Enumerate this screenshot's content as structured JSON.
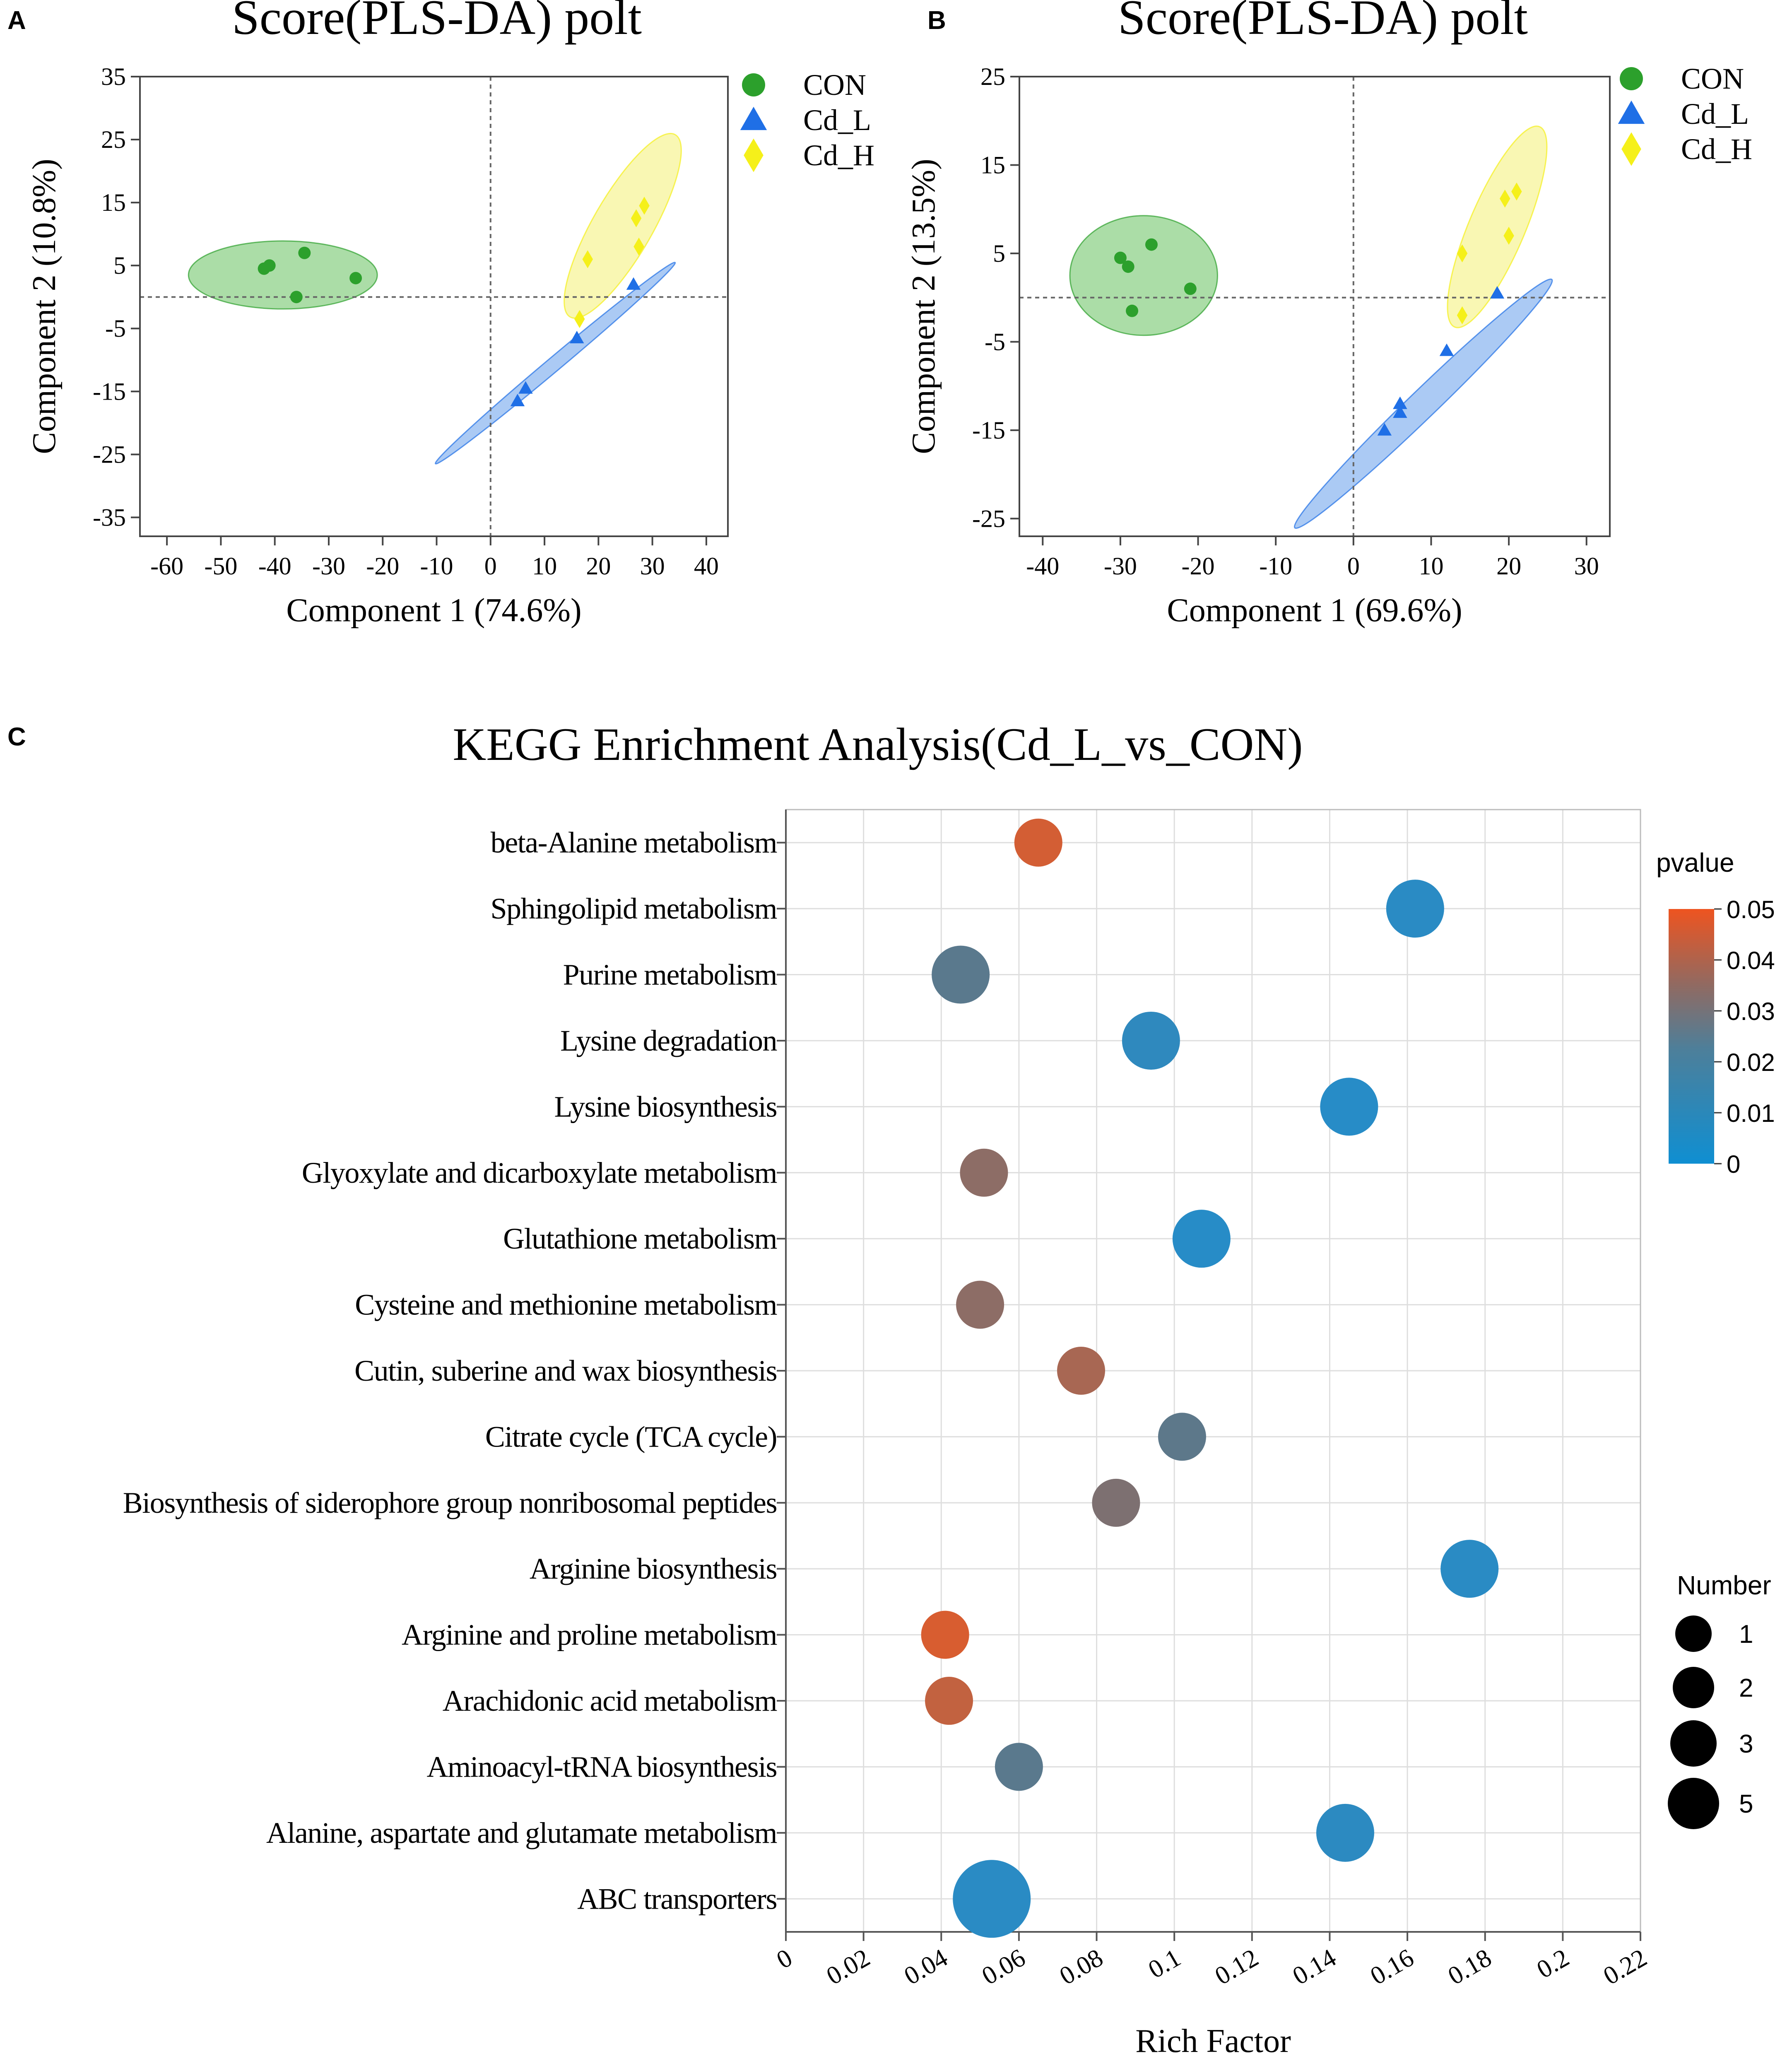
{
  "panels": {
    "a": {
      "letter": "A"
    },
    "b": {
      "letter": "B"
    },
    "c": {
      "letter": "C"
    }
  },
  "colors": {
    "con": "#2ca02c",
    "con_fill": "#8fd18a",
    "cd_l": "#1f6fe6",
    "cd_l_fill": "#8fb8f0",
    "cd_h": "#f5f01a",
    "cd_h_fill": "#f7f49a",
    "p_low": "#1f8fd0",
    "p_high": "#e85a25"
  },
  "chart_data": [
    {
      "type": "scatter",
      "id": "plsda_a",
      "title": "Score(PLS-DA) polt",
      "xlabel": "Component 1 (74.6%)",
      "ylabel": "Component 2 (10.8%)",
      "xlim": [
        -65,
        44
      ],
      "ylim": [
        -38,
        35
      ],
      "xticks": [
        -60,
        -50,
        -40,
        -30,
        -20,
        -10,
        0,
        10,
        20,
        30,
        40
      ],
      "yticks": [
        35,
        25,
        15,
        5,
        -5,
        -15,
        -25,
        -35
      ],
      "legend": [
        "CON",
        "Cd_L",
        "Cd_H"
      ],
      "series": [
        {
          "name": "CON",
          "marker": "circle",
          "points": [
            [
              -42,
              4.5
            ],
            [
              -41,
              5
            ],
            [
              -34.5,
              7
            ],
            [
              -36,
              0
            ],
            [
              -25,
              3
            ]
          ],
          "ellipse": {
            "cx": -38.5,
            "cy": 3.5,
            "rx": 17.5,
            "ry": 6.3,
            "angle": 0
          }
        },
        {
          "name": "Cd_L",
          "marker": "triangle",
          "points": [
            [
              26.5,
              2
            ],
            [
              16,
              -6.5
            ],
            [
              6.5,
              -14.5
            ],
            [
              5,
              -16.5
            ]
          ],
          "ellipse": {
            "cx": 12,
            "cy": -10.5,
            "rx": 29,
            "ry": 1.3,
            "angle": 40
          }
        },
        {
          "name": "Cd_H",
          "marker": "diamond",
          "points": [
            [
              28.5,
              14.5
            ],
            [
              27,
              12.5
            ],
            [
              27.5,
              8
            ],
            [
              18,
              6
            ],
            [
              16.5,
              -3.5
            ]
          ],
          "ellipse": {
            "cx": 24.5,
            "cy": 11.3,
            "rx": 19.5,
            "ry": 5.5,
            "angle": 60
          }
        }
      ]
    },
    {
      "type": "scatter",
      "id": "plsda_b",
      "title": "Score(PLS-DA) polt",
      "xlabel": "Component 1 (69.6%)",
      "ylabel": "Component 2 (13.5%)",
      "xlim": [
        -43,
        33
      ],
      "ylim": [
        -27,
        25
      ],
      "xticks": [
        -40,
        -30,
        -20,
        -10,
        0,
        10,
        20,
        30
      ],
      "yticks": [
        25,
        15,
        5,
        -5,
        -15,
        -25
      ],
      "legend": [
        "CON",
        "Cd_L",
        "Cd_H"
      ],
      "series": [
        {
          "name": "CON",
          "marker": "circle",
          "points": [
            [
              -30,
              4.5
            ],
            [
              -29,
              3.5
            ],
            [
              -26,
              6
            ],
            [
              -28.5,
              -1.5
            ],
            [
              -21,
              1
            ]
          ],
          "ellipse": {
            "cx": -27,
            "cy": 2.5,
            "rx": 9.5,
            "ry": 7.7,
            "angle": 0
          }
        },
        {
          "name": "Cd_L",
          "marker": "triangle",
          "points": [
            [
              18.5,
              0.5
            ],
            [
              12,
              -6
            ],
            [
              6,
              -12
            ],
            [
              6,
              -13
            ],
            [
              4,
              -15
            ]
          ],
          "ellipse": {
            "cx": 9,
            "cy": -12,
            "rx": 23,
            "ry": 1.8,
            "angle": 44
          }
        },
        {
          "name": "Cd_H",
          "marker": "diamond",
          "points": [
            [
              21,
              12
            ],
            [
              19.5,
              11.2
            ],
            [
              20,
              7
            ],
            [
              14,
              5
            ],
            [
              14,
              -2
            ]
          ],
          "ellipse": {
            "cx": 18.5,
            "cy": 8,
            "rx": 14,
            "ry": 3.6,
            "angle": 67
          }
        }
      ]
    },
    {
      "type": "bubble",
      "id": "kegg",
      "title": "KEGG Enrichment Analysis(Cd_L_vs_CON)",
      "xlabel": "Rich Factor",
      "xlim": [
        0,
        0.22
      ],
      "xticks": [
        "0",
        "0.02",
        "0.04",
        "0.06",
        "0.08",
        "0.1",
        "0.12",
        "0.14",
        "0.16",
        "0.18",
        "0.2",
        "0.22"
      ],
      "pathways": [
        {
          "name": "beta-Alanine metabolism",
          "rich": 0.065,
          "pvalue": 0.046,
          "number": 2
        },
        {
          "name": "Sphingolipid metabolism",
          "rich": 0.162,
          "pvalue": 0.004,
          "number": 3
        },
        {
          "name": "Purine metabolism",
          "rich": 0.045,
          "pvalue": 0.022,
          "number": 3
        },
        {
          "name": "Lysine degradation",
          "rich": 0.094,
          "pvalue": 0.006,
          "number": 3
        },
        {
          "name": "Lysine biosynthesis",
          "rich": 0.145,
          "pvalue": 0.003,
          "number": 3
        },
        {
          "name": "Glyoxylate and dicarboxylate metabolism",
          "rich": 0.051,
          "pvalue": 0.033,
          "number": 2
        },
        {
          "name": "Glutathione metabolism",
          "rich": 0.107,
          "pvalue": 0.003,
          "number": 3
        },
        {
          "name": "Cysteine and methionine metabolism",
          "rich": 0.05,
          "pvalue": 0.033,
          "number": 2
        },
        {
          "name": "Cutin, suberine and wax biosynthesis",
          "rich": 0.076,
          "pvalue": 0.038,
          "number": 2
        },
        {
          "name": "Citrate cycle (TCA cycle)",
          "rich": 0.102,
          "pvalue": 0.023,
          "number": 2
        },
        {
          "name": "Biosynthesis of siderophore group nonribosomal peptides",
          "rich": 0.085,
          "pvalue": 0.03,
          "number": 2
        },
        {
          "name": "Arginine biosynthesis",
          "rich": 0.176,
          "pvalue": 0.004,
          "number": 3
        },
        {
          "name": "Arginine and proline metabolism",
          "rich": 0.041,
          "pvalue": 0.047,
          "number": 2
        },
        {
          "name": "Arachidonic acid metabolism",
          "rich": 0.042,
          "pvalue": 0.043,
          "number": 2
        },
        {
          "name": "Aminoacyl-tRNA biosynthesis",
          "rich": 0.06,
          "pvalue": 0.022,
          "number": 2
        },
        {
          "name": "Alanine, aspartate and glutamate metabolism",
          "rich": 0.144,
          "pvalue": 0.005,
          "number": 3
        },
        {
          "name": "ABC transporters",
          "rich": 0.053,
          "pvalue": 0.004,
          "number": 5
        }
      ],
      "color_legend": {
        "title": "pvalue",
        "ticks": [
          "0.05",
          "0.04",
          "0.03",
          "0.02",
          "0.01",
          "0"
        ],
        "min": 0,
        "max": 0.05
      },
      "size_legend": {
        "title": "Number",
        "values": [
          "1",
          "2",
          "3",
          "5"
        ]
      }
    }
  ]
}
